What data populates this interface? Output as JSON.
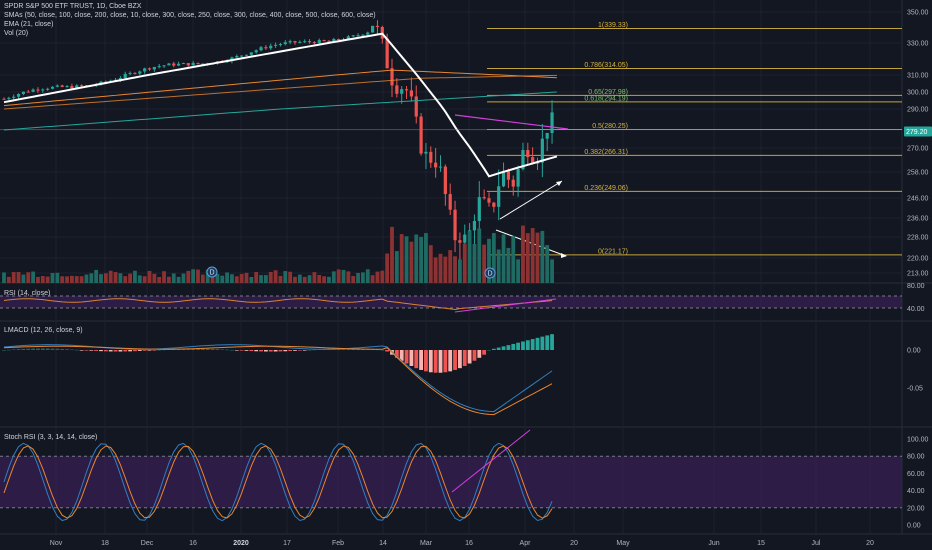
{
  "header": {
    "title": "SPDR S&P 500 ETF TRUST, 1D, Cboe BZX",
    "indicators": [
      "SMAs (50, close, 100, close, 200, close, 10, close, 300, close, 250, close, 300, close, 400, close, 500, close, 600, close)",
      "EMA (21, close)",
      "Vol (20)"
    ]
  },
  "panes": {
    "rsi_label": "RSI (14, close)",
    "lmacd_label": "LMACD (12, 26, close, 9)",
    "stoch_label": "Stoch RSI (3, 3, 14, 14, close)"
  },
  "price_badge": "279.20",
  "fib_labels": [
    "1(339.33)",
    "0.786(314.05)",
    "0.65(297.98)",
    "0.618(294.19)",
    "0.5(280.25)",
    "0.382(266.31)",
    "0.236(249.06)",
    "0(221.17)"
  ],
  "colors": {
    "background": "#131722",
    "up": "#26a69a",
    "down": "#ef5350",
    "ema": "#ffffff",
    "fib": "#d6b43c",
    "trend": "#d73ee0",
    "sma_orange": "#e8862f",
    "sma_green": "#26a69a"
  },
  "chart_data": [
    {
      "type": "candlestick",
      "title": "SPDR S&P 500 ETF TRUST, 1D, Cboe BZX",
      "x_ticks": [
        "Nov",
        "18",
        "Dec",
        "16",
        "2020",
        "17",
        "Feb",
        "14",
        "Mar",
        "16",
        "Apr",
        "20",
        "May",
        "Jun",
        "15",
        "Jul",
        "20"
      ],
      "y_ticks": [
        350.0,
        330.0,
        310.0,
        300.0,
        290.0,
        280.0,
        270.0,
        258.0,
        246.0,
        236.0,
        228.0,
        220.0,
        213.0
      ],
      "last_price": 279.2,
      "fib_levels": [
        339.33,
        314.05,
        297.98,
        294.19,
        280.25,
        266.31,
        249.06,
        221.17
      ],
      "x_range": [
        "2019-10-25",
        "2020-09-01"
      ],
      "y_range": [
        209,
        355
      ]
    },
    {
      "type": "line",
      "title": "RSI (14, close)",
      "y_ticks": [
        80.0,
        40.0
      ],
      "band": [
        30,
        70
      ]
    },
    {
      "type": "bar",
      "title": "LMACD (12, 26, close, 9)",
      "y_ticks": [
        0.0,
        -0.05
      ]
    },
    {
      "type": "line",
      "title": "Stoch RSI (3, 3, 14, 14, close)",
      "y_ticks": [
        100.0,
        80.0,
        60.0,
        40.0,
        20.0,
        0.0
      ],
      "band": [
        20,
        80
      ]
    }
  ]
}
